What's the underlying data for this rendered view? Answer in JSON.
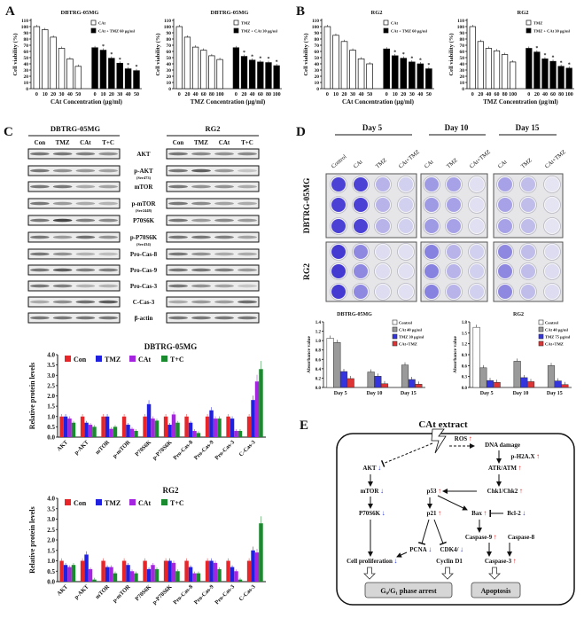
{
  "panel_labels": {
    "a": "A",
    "b": "B",
    "c": "C",
    "d": "D",
    "e": "E"
  },
  "chart_data": [
    {
      "type": "bar",
      "title": "DBTRG-05MG",
      "xlabel": "CAt Concentration (µg/ml)",
      "ylabel": "Cell viability (%)",
      "ylim": [
        0,
        110
      ],
      "yticks": [
        "0",
        "10",
        "20",
        "30",
        "40",
        "50",
        "60",
        "70",
        "80",
        "90",
        "100",
        "110"
      ],
      "categories": [
        "0",
        "10",
        "20",
        "30",
        "40",
        "50",
        "0",
        "10",
        "20",
        "30",
        "40",
        "50"
      ],
      "series": [
        {
          "name": "CAt",
          "color": "#ffffff",
          "values": [
            100,
            95,
            83,
            65,
            48,
            36,
            null,
            null,
            null,
            null,
            null,
            null
          ]
        },
        {
          "name": "CAt + TMZ 60 µg/ml",
          "color": "#000000",
          "values": [
            null,
            null,
            null,
            null,
            null,
            null,
            66,
            62,
            49,
            41,
            32,
            29
          ]
        }
      ],
      "significance": [
        "",
        "",
        "",
        "",
        "",
        "",
        "",
        "*",
        "*",
        "*",
        "*",
        "*"
      ]
    },
    {
      "type": "bar",
      "title": "DBTRG-05MG",
      "xlabel": "TMZ Concentration (µg/ml)",
      "ylabel": "Cell viability (%)",
      "ylim": [
        0,
        110
      ],
      "yticks": [
        "0",
        "10",
        "20",
        "30",
        "40",
        "50",
        "60",
        "70",
        "80",
        "90",
        "100",
        "110"
      ],
      "categories": [
        "0",
        "20",
        "40",
        "60",
        "80",
        "100",
        "0",
        "20",
        "40",
        "60",
        "80",
        "100"
      ],
      "series": [
        {
          "name": "TMZ",
          "color": "#ffffff",
          "values": [
            100,
            83,
            67,
            62,
            53,
            47,
            null,
            null,
            null,
            null,
            null,
            null
          ]
        },
        {
          "name": "TMZ + CAt 30 µg/ml",
          "color": "#000000",
          "values": [
            null,
            null,
            null,
            null,
            null,
            null,
            66,
            52,
            46,
            43,
            42,
            37
          ]
        }
      ],
      "significance": [
        "",
        "",
        "",
        "",
        "",
        "",
        "",
        "*",
        "*",
        "*",
        "*",
        "*"
      ]
    },
    {
      "type": "bar",
      "title": "RG2",
      "xlabel": "CAt Concentration (µg/ml)",
      "ylabel": "Cell viability (%)",
      "ylim": [
        0,
        110
      ],
      "yticks": [
        "0",
        "10",
        "20",
        "30",
        "40",
        "50",
        "60",
        "70",
        "80",
        "90",
        "100",
        "110"
      ],
      "categories": [
        "0",
        "10",
        "20",
        "30",
        "40",
        "50",
        "0",
        "10",
        "20",
        "30",
        "40",
        "50"
      ],
      "series": [
        {
          "name": "CAt",
          "color": "#ffffff",
          "values": [
            100,
            86,
            76,
            62,
            48,
            40,
            null,
            null,
            null,
            null,
            null,
            null
          ]
        },
        {
          "name": "CAt + TMZ 60 µg/ml",
          "color": "#000000",
          "values": [
            null,
            null,
            null,
            null,
            null,
            null,
            64,
            53,
            49,
            43,
            40,
            32
          ]
        }
      ],
      "significance": [
        "",
        "",
        "",
        "",
        "",
        "",
        "",
        "*",
        "*",
        "*",
        "*",
        "*"
      ]
    },
    {
      "type": "bar",
      "title": "RG2",
      "xlabel": "TMZ Concentration (µg/ml)",
      "ylabel": "Cell viability (%)",
      "ylim": [
        0,
        110
      ],
      "yticks": [
        "0",
        "10",
        "20",
        "30",
        "40",
        "50",
        "60",
        "70",
        "80",
        "90",
        "100",
        "110"
      ],
      "categories": [
        "0",
        "20",
        "40",
        "60",
        "80",
        "100",
        "0",
        "20",
        "40",
        "60",
        "80",
        "100"
      ],
      "series": [
        {
          "name": "TMZ",
          "color": "#ffffff",
          "values": [
            100,
            76,
            65,
            61,
            55,
            43,
            null,
            null,
            null,
            null,
            null,
            null
          ]
        },
        {
          "name": "TMZ + CAt 30 µg/ml",
          "color": "#000000",
          "values": [
            null,
            null,
            null,
            null,
            null,
            null,
            65,
            59,
            48,
            44,
            36,
            33
          ]
        }
      ],
      "significance": [
        "",
        "",
        "",
        "",
        "",
        "",
        "",
        "*",
        "*",
        "*",
        "*",
        "*"
      ]
    },
    {
      "type": "bar",
      "title": "DBTRG-05MG",
      "ylabel": "Relative protein levels",
      "ylim": [
        0,
        4
      ],
      "yticks": [
        "0.0",
        "0.5",
        "1.0",
        "1.5",
        "2.0",
        "2.5",
        "3.0",
        "3.5",
        "4.0"
      ],
      "categories": [
        "AKT",
        "p-AKT",
        "mTOR",
        "p-mTOR",
        "P70S6K",
        "p-P70S6K",
        "Pro-Cas-8",
        "Pro-Cas-9",
        "Pro-Cas-3",
        "C-Cas-3"
      ],
      "legend": "top-left",
      "series": [
        {
          "name": "Con",
          "color": "#e8262a",
          "values": [
            1,
            1,
            1,
            1,
            1,
            1,
            1,
            1,
            1,
            1
          ]
        },
        {
          "name": "TMZ",
          "color": "#2020e0",
          "values": [
            1.0,
            0.7,
            1.0,
            0.6,
            1.6,
            0.6,
            0.7,
            1.3,
            0.9,
            1.8
          ]
        },
        {
          "name": "CAt",
          "color": "#a524e0",
          "values": [
            0.9,
            0.6,
            0.4,
            0.4,
            0.9,
            1.1,
            0.3,
            0.9,
            0.3,
            2.7
          ]
        },
        {
          "name": "T+C",
          "color": "#1a8a2e",
          "values": [
            0.7,
            0.5,
            0.5,
            0.3,
            0.8,
            0.7,
            0.2,
            0.9,
            0.3,
            3.3
          ]
        }
      ]
    },
    {
      "type": "bar",
      "title": "RG2",
      "ylabel": "Relative protein levels",
      "ylim": [
        0,
        4
      ],
      "yticks": [
        "0.0",
        "0.5",
        "1.0",
        "1.5",
        "2.0",
        "2.5",
        "3.0",
        "3.5",
        "4.0"
      ],
      "categories": [
        "AKT",
        "p-AKT",
        "mTOR",
        "p-mTOR",
        "P70S6K",
        "p-P70S6K",
        "Pro-Cas-8",
        "Pro-Cas-9",
        "Pro-Cas-3",
        "C-Cas-3"
      ],
      "legend": "top-left",
      "series": [
        {
          "name": "Con",
          "color": "#e8262a",
          "values": [
            1,
            1,
            1,
            1,
            1,
            1,
            1,
            1,
            1,
            1
          ]
        },
        {
          "name": "TMZ",
          "color": "#2020e0",
          "values": [
            0.8,
            1.3,
            0.7,
            0.8,
            0.6,
            1.0,
            0.7,
            1.0,
            0.7,
            1.5
          ]
        },
        {
          "name": "CAt",
          "color": "#a524e0",
          "values": [
            0.7,
            0.6,
            0.7,
            0.5,
            0.8,
            0.9,
            0.4,
            0.9,
            0.5,
            1.4
          ]
        },
        {
          "name": "T+C",
          "color": "#1a8a2e",
          "values": [
            0.8,
            0.1,
            0.4,
            0.4,
            0.6,
            0.5,
            0.4,
            0.6,
            0.1,
            2.8
          ]
        }
      ]
    },
    {
      "type": "bar",
      "title": "DBTRG-05MG",
      "ylabel": "Absorbance value",
      "ylim": [
        0,
        1.4
      ],
      "yticks": [
        "0.0",
        "0.2",
        "0.4",
        "0.6",
        "0.8",
        "1.0",
        "1.2",
        "1.4"
      ],
      "categories": [
        "Day 5",
        "Day 10",
        "Day 15"
      ],
      "legend": "top-right",
      "series": [
        {
          "name": "Control",
          "color": "#ffffff",
          "values": [
            1.05,
            null,
            null
          ]
        },
        {
          "name": "CAt 40 µg/ml",
          "color": "#9a9a9a",
          "values": [
            0.96,
            0.33,
            0.48
          ]
        },
        {
          "name": "TMZ 30 µg/ml",
          "color": "#3535dd",
          "values": [
            0.34,
            0.24,
            0.17
          ]
        },
        {
          "name": "CAt+TMZ",
          "color": "#dd3535",
          "values": [
            0.19,
            0.08,
            0.07
          ]
        }
      ]
    },
    {
      "type": "bar",
      "title": "RG2",
      "ylabel": "Absorbance value",
      "ylim": [
        0,
        1.8
      ],
      "yticks": [
        "0.0",
        "0.3",
        "0.6",
        "0.9",
        "1.2",
        "1.5",
        "1.8"
      ],
      "categories": [
        "Day 5",
        "Day 10",
        "Day 15"
      ],
      "legend": "top-right",
      "series": [
        {
          "name": "Control",
          "color": "#ffffff",
          "values": [
            1.65,
            null,
            null
          ]
        },
        {
          "name": "CAt 40 µg/ml",
          "color": "#9a9a9a",
          "values": [
            0.54,
            0.72,
            0.6
          ]
        },
        {
          "name": "TMZ 75 µg/ml",
          "color": "#3535dd",
          "values": [
            0.19,
            0.27,
            0.18
          ]
        },
        {
          "name": "CAt+TMZ",
          "color": "#dd3535",
          "values": [
            0.14,
            0.16,
            0.08
          ]
        }
      ]
    }
  ],
  "blot": {
    "cell_lines": [
      "DBTRG-05MG",
      "RG2"
    ],
    "lanes": [
      "Con",
      "TMZ",
      "CAt",
      "T+C"
    ],
    "rows": [
      {
        "label": "AKT"
      },
      {
        "label": "p-AKT",
        "sub": "(Ser473)"
      },
      {
        "label": "mTOR"
      },
      {
        "label": "p-mTOR",
        "sub": "(Ser2448)"
      },
      {
        "label": "P70S6K"
      },
      {
        "label": "p-P70S6K",
        "sub": "(Ser434)"
      },
      {
        "label": "Pro-Cas-8"
      },
      {
        "label": "Pro-Cas-9"
      },
      {
        "label": "Pro-Cas-3"
      },
      {
        "label": "C-Cas-3"
      },
      {
        "label": "β-actin"
      }
    ]
  },
  "colony": {
    "days": [
      "Day 5",
      "Day 10",
      "Day 15"
    ],
    "columns": [
      [
        "Control",
        "CAt",
        "TMZ",
        "CAt+TMZ"
      ],
      [
        "CAt",
        "TMZ",
        "CAt+TMZ"
      ],
      [
        "CAt",
        "TMZ",
        "CAt+TMZ"
      ]
    ],
    "cell_lines": [
      "DBTRG-05MG",
      "RG2"
    ],
    "stain_color": "#3a2fd0",
    "stain_level": [
      [
        [
          0.95,
          0.95,
          0.3,
          0.15
        ],
        [
          0.45,
          0.4,
          0.05
        ],
        [
          0.4,
          0.25,
          0.03
        ]
      ],
      [
        [
          1.0,
          0.55,
          0.08,
          0.05
        ],
        [
          0.6,
          0.3,
          0.15
        ],
        [
          0.55,
          0.25,
          0.08
        ]
      ]
    ]
  },
  "pathway": {
    "title": "CAt extract",
    "up_color": "#e01b1b",
    "down_color": "#2a3ad8",
    "nodes": [
      {
        "id": "ros",
        "label": "ROS",
        "change": "up"
      },
      {
        "id": "dna",
        "label": "DNA damage",
        "change": null
      },
      {
        "id": "h2ax",
        "label": "p-H2A.X",
        "change": "up"
      },
      {
        "id": "akt",
        "label": "AKT",
        "change": "down"
      },
      {
        "id": "atr",
        "label": "ATR/ATM",
        "change": "up"
      },
      {
        "id": "mtor",
        "label": "mTOR",
        "change": "down"
      },
      {
        "id": "p53",
        "label": "p53",
        "change": "up"
      },
      {
        "id": "chk",
        "label": "Chk1/Chk2",
        "change": "up"
      },
      {
        "id": "p70",
        "label": "P70S6K",
        "change": "down"
      },
      {
        "id": "p21",
        "label": "p21",
        "change": "up"
      },
      {
        "id": "bax",
        "label": "Bax",
        "change": "up"
      },
      {
        "id": "bcl2",
        "label": "Bcl-2",
        "change": "down"
      },
      {
        "id": "cas9",
        "label": "Caspase-9",
        "change": "up"
      },
      {
        "id": "cas8",
        "label": "Caspase-8",
        "change": null
      },
      {
        "id": "pcna",
        "label": "PCNA",
        "change": "down"
      },
      {
        "id": "cdk4",
        "label": "CDK4/",
        "change": "down"
      },
      {
        "id": "cyclin",
        "label": "Cyclin  D1",
        "change": null
      },
      {
        "id": "prolif",
        "label": "Cell proliferation",
        "change": "down"
      },
      {
        "id": "cas3",
        "label": "Caspase-3",
        "change": "up"
      }
    ],
    "outcomes": [
      "G₀/G₁ phase arrest",
      "Apoptosis"
    ]
  }
}
